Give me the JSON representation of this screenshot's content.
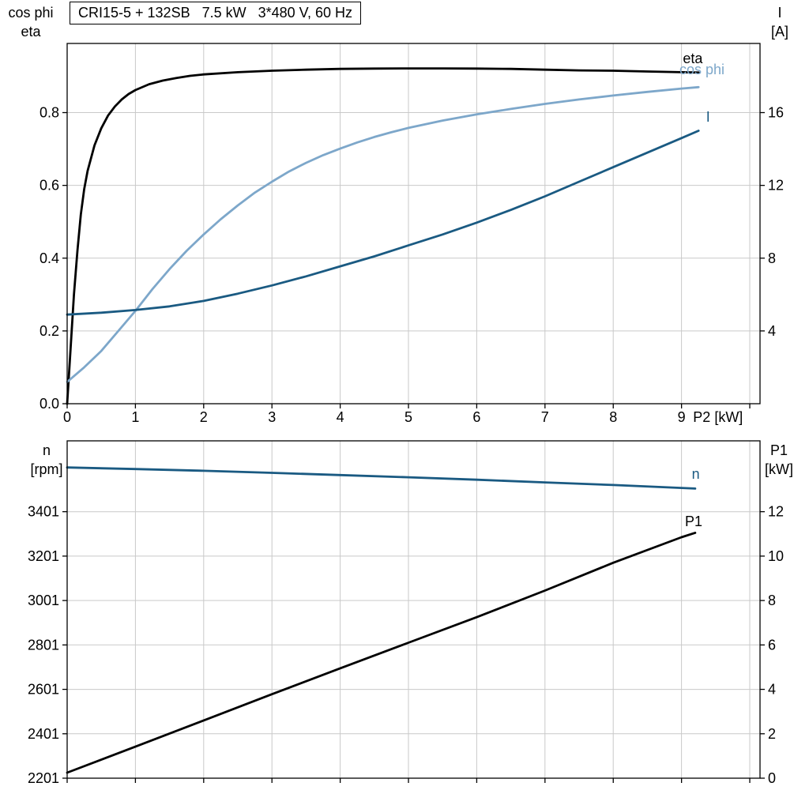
{
  "title_box": {
    "text": "CRI15-5 + 132SB   7.5 kW   3*480 V, 60 Hz"
  },
  "colors": {
    "black_curve": "#000000",
    "cos_phi_curve": "#7da7ca",
    "dark_blue_curve": "#1a5a82",
    "grid": "#c9c9c9",
    "frame": "#000000",
    "text": "#000000",
    "background": "#ffffff"
  },
  "top_chart": {
    "left_axis_line1": "cos phi",
    "left_axis_line2": "eta",
    "right_axis_line1": "I",
    "right_axis_line2": "[A]"
  },
  "bottom_chart": {
    "left_axis_line1": "n",
    "left_axis_line2": "[rpm]",
    "right_axis_line1": "P1",
    "right_axis_line2": "[kW]"
  },
  "chart_data": [
    {
      "id": "top",
      "type": "line",
      "title": "CRI15-5 + 132SB  7.5 kW  3*480 V, 60 Hz",
      "xlabel": "P2 [kW]",
      "xlabel_anchor_x": 9.17,
      "xlim": [
        0,
        10.15
      ],
      "x_ticks": [
        {
          "v": 0,
          "t": "0"
        },
        {
          "v": 1,
          "t": "1"
        },
        {
          "v": 2,
          "t": "2"
        },
        {
          "v": 3,
          "t": "3"
        },
        {
          "v": 4,
          "t": "4"
        },
        {
          "v": 5,
          "t": "5"
        },
        {
          "v": 6,
          "t": "6"
        },
        {
          "v": 7,
          "t": "7"
        },
        {
          "v": 8,
          "t": "8"
        },
        {
          "v": 9,
          "t": "9"
        }
      ],
      "x_tick_marks": [
        10
      ],
      "x_grid": [
        1,
        2,
        3,
        4,
        5,
        6,
        7,
        8,
        9,
        10
      ],
      "left_axis": {
        "name": "cos phi / eta",
        "lim": [
          0,
          0.99
        ],
        "ticks": [
          {
            "v": 0,
            "t": "0.0"
          },
          {
            "v": 0.2,
            "t": "0.2"
          },
          {
            "v": 0.4,
            "t": "0.4"
          },
          {
            "v": 0.6,
            "t": "0.6"
          },
          {
            "v": 0.8,
            "t": "0.8"
          }
        ]
      },
      "right_axis": {
        "name": "I [A]",
        "lim": [
          0,
          19.8
        ],
        "ticks": [
          {
            "v": 4,
            "t": "4"
          },
          {
            "v": 8,
            "t": "8"
          },
          {
            "v": 12,
            "t": "12"
          },
          {
            "v": 16,
            "t": "16"
          }
        ]
      },
      "series": [
        {
          "name": "eta",
          "axis": "left",
          "color_key": "black_curve",
          "label": {
            "text": "eta",
            "x": 9.02,
            "y": 0.936
          },
          "points": [
            [
              0,
              0
            ],
            [
              0.05,
              0.15
            ],
            [
              0.1,
              0.3
            ],
            [
              0.15,
              0.42
            ],
            [
              0.2,
              0.52
            ],
            [
              0.25,
              0.59
            ],
            [
              0.3,
              0.64
            ],
            [
              0.4,
              0.71
            ],
            [
              0.5,
              0.757
            ],
            [
              0.6,
              0.792
            ],
            [
              0.7,
              0.817
            ],
            [
              0.8,
              0.836
            ],
            [
              0.9,
              0.851
            ],
            [
              1,
              0.862
            ],
            [
              1.2,
              0.878
            ],
            [
              1.4,
              0.888
            ],
            [
              1.6,
              0.895
            ],
            [
              1.8,
              0.901
            ],
            [
              2,
              0.905
            ],
            [
              2.5,
              0.911
            ],
            [
              3,
              0.915
            ],
            [
              3.5,
              0.918
            ],
            [
              4,
              0.92
            ],
            [
              4.5,
              0.921
            ],
            [
              5,
              0.9215
            ],
            [
              5.5,
              0.9215
            ],
            [
              6,
              0.921
            ],
            [
              6.5,
              0.92
            ],
            [
              7,
              0.918
            ],
            [
              7.5,
              0.916
            ],
            [
              8,
              0.915
            ],
            [
              8.5,
              0.913
            ],
            [
              9,
              0.911
            ],
            [
              9.25,
              0.91
            ]
          ]
        },
        {
          "name": "cos phi",
          "axis": "left",
          "color_key": "cos_phi_curve",
          "label": {
            "text": "cos phi",
            "x": 8.97,
            "y": 0.905
          },
          "points": [
            [
              0,
              0.06
            ],
            [
              0.25,
              0.1
            ],
            [
              0.5,
              0.145
            ],
            [
              0.75,
              0.2
            ],
            [
              1,
              0.255
            ],
            [
              1.25,
              0.315
            ],
            [
              1.5,
              0.37
            ],
            [
              1.75,
              0.42
            ],
            [
              2,
              0.465
            ],
            [
              2.25,
              0.507
            ],
            [
              2.5,
              0.545
            ],
            [
              2.75,
              0.58
            ],
            [
              3,
              0.61
            ],
            [
              3.25,
              0.638
            ],
            [
              3.5,
              0.662
            ],
            [
              3.75,
              0.683
            ],
            [
              4,
              0.701
            ],
            [
              4.25,
              0.718
            ],
            [
              4.5,
              0.733
            ],
            [
              4.75,
              0.746
            ],
            [
              5,
              0.758
            ],
            [
              5.5,
              0.778
            ],
            [
              6,
              0.795
            ],
            [
              6.5,
              0.81
            ],
            [
              7,
              0.824
            ],
            [
              7.5,
              0.836
            ],
            [
              8,
              0.847
            ],
            [
              8.5,
              0.857
            ],
            [
              9,
              0.866
            ],
            [
              9.25,
              0.87
            ]
          ]
        },
        {
          "name": "I",
          "axis": "right",
          "color_key": "dark_blue_curve",
          "label": {
            "text": "I",
            "x": 9.36,
            "y": 15.5
          },
          "points": [
            [
              0,
              4.9
            ],
            [
              0.5,
              5.0
            ],
            [
              1,
              5.15
            ],
            [
              1.5,
              5.35
            ],
            [
              2,
              5.65
            ],
            [
              2.5,
              6.05
            ],
            [
              3,
              6.5
            ],
            [
              3.5,
              7.0
            ],
            [
              4,
              7.55
            ],
            [
              4.5,
              8.1
            ],
            [
              5,
              8.7
            ],
            [
              5.5,
              9.3
            ],
            [
              6,
              9.95
            ],
            [
              6.5,
              10.65
            ],
            [
              7,
              11.4
            ],
            [
              7.5,
              12.2
            ],
            [
              8,
              13.0
            ],
            [
              8.5,
              13.8
            ],
            [
              9,
              14.6
            ],
            [
              9.25,
              15.0
            ]
          ]
        }
      ]
    },
    {
      "id": "bottom",
      "type": "line",
      "title": "",
      "xlabel": "",
      "xlim": [
        0,
        10.15
      ],
      "x_ticks": [],
      "x_tick_marks": [
        0,
        1,
        2,
        3,
        4,
        5,
        6,
        7,
        8,
        9,
        10
      ],
      "x_grid": [
        1,
        2,
        3,
        4,
        5,
        6,
        7,
        8,
        9,
        10
      ],
      "left_axis": {
        "name": "n [rpm]",
        "lim": [
          2201,
          3720
        ],
        "ticks": [
          {
            "v": 2201,
            "t": "2201"
          },
          {
            "v": 2401,
            "t": "2401"
          },
          {
            "v": 2601,
            "t": "2601"
          },
          {
            "v": 2801,
            "t": "2801"
          },
          {
            "v": 3001,
            "t": "3001"
          },
          {
            "v": 3201,
            "t": "3201"
          },
          {
            "v": 3401,
            "t": "3401"
          }
        ]
      },
      "right_axis": {
        "name": "P1 [kW]",
        "lim": [
          0,
          15.19
        ],
        "ticks": [
          {
            "v": 0,
            "t": "0"
          },
          {
            "v": 2,
            "t": "2"
          },
          {
            "v": 4,
            "t": "4"
          },
          {
            "v": 6,
            "t": "6"
          },
          {
            "v": 8,
            "t": "8"
          },
          {
            "v": 10,
            "t": "10"
          },
          {
            "v": 12,
            "t": "12"
          }
        ]
      },
      "series": [
        {
          "name": "n",
          "axis": "left",
          "color_key": "dark_blue_curve",
          "label": {
            "text": "n",
            "x": 9.15,
            "y": 3550
          },
          "points": [
            [
              0,
              3600
            ],
            [
              1,
              3593
            ],
            [
              2,
              3585
            ],
            [
              3,
              3576
            ],
            [
              4,
              3566
            ],
            [
              5,
              3556
            ],
            [
              6,
              3545
            ],
            [
              7,
              3533
            ],
            [
              8,
              3521
            ],
            [
              9,
              3508
            ],
            [
              9.2,
              3505
            ]
          ]
        },
        {
          "name": "P1",
          "axis": "right",
          "color_key": "black_curve",
          "label": {
            "text": "P1",
            "x": 9.05,
            "y": 11.35
          },
          "points": [
            [
              0,
              0.25
            ],
            [
              1,
              1.42
            ],
            [
              2,
              2.6
            ],
            [
              3,
              3.78
            ],
            [
              4,
              4.95
            ],
            [
              5,
              6.1
            ],
            [
              6,
              7.25
            ],
            [
              7,
              8.45
            ],
            [
              8,
              9.7
            ],
            [
              9,
              10.85
            ],
            [
              9.2,
              11.05
            ]
          ]
        }
      ]
    }
  ]
}
